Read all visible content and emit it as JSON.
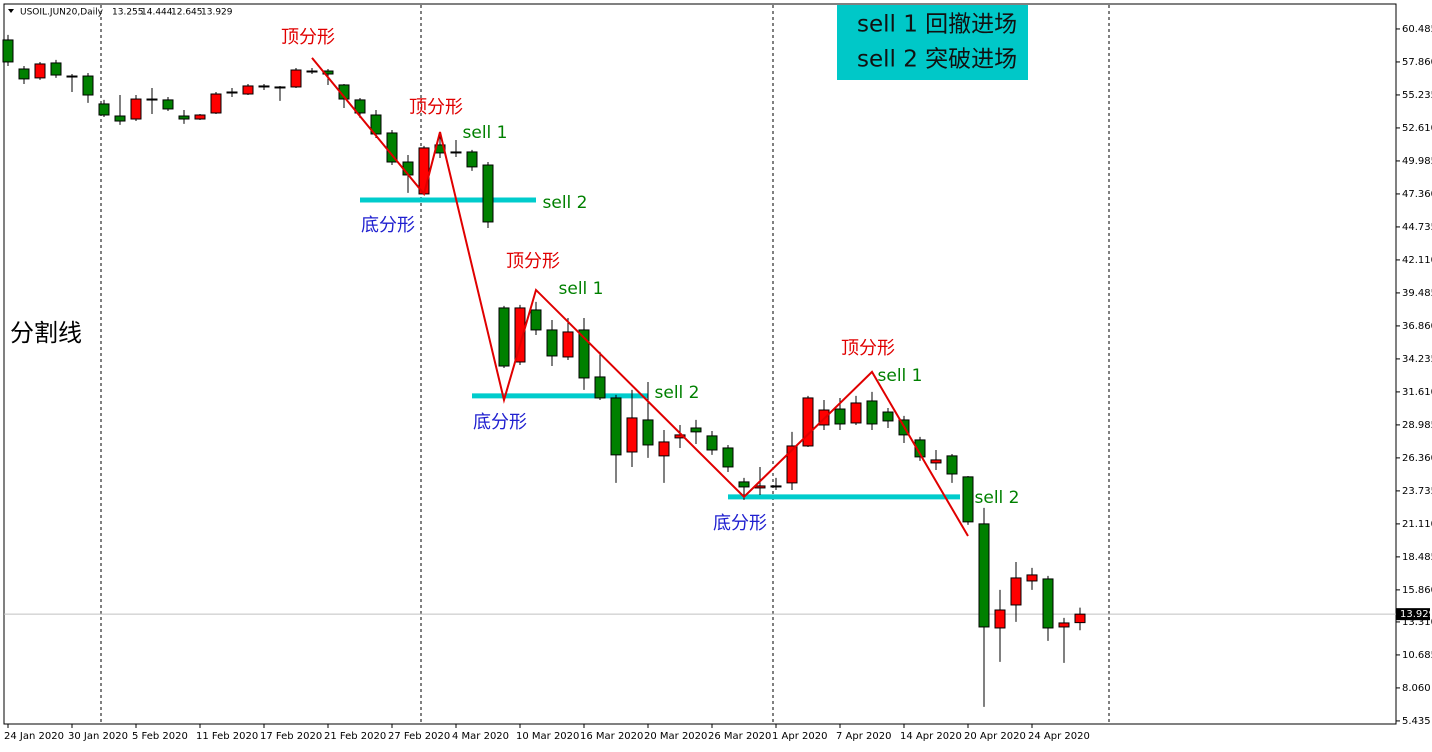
{
  "chart_data": {
    "type": "candlestick",
    "title": "USOIL.JUN20,Daily",
    "categories": [
      "24 Jan 2020",
      null,
      null,
      null,
      "30 Jan 2020",
      null,
      null,
      null,
      "5 Feb 2020",
      null,
      null,
      null,
      "11 Feb 2020",
      null,
      null,
      null,
      "17 Feb 2020",
      null,
      null,
      null,
      "21 Feb 2020",
      null,
      null,
      null,
      "27 Feb 2020",
      null,
      null,
      null,
      "4 Mar 2020",
      null,
      null,
      null,
      "10 Mar 2020",
      null,
      null,
      null,
      "16 Mar 2020",
      null,
      null,
      null,
      "20 Mar 2020",
      null,
      null,
      null,
      "26 Mar 2020",
      null,
      null,
      null,
      "1 Apr 2020",
      null,
      null,
      null,
      "7 Apr 2020",
      null,
      null,
      null,
      "14 Apr 2020",
      null,
      null,
      null,
      "20 Apr 2020",
      null,
      null,
      null,
      "24 Apr 2020",
      null,
      null,
      null
    ],
    "open": [
      59.61,
      57.3,
      56.59,
      57.78,
      56.74,
      56.74,
      54.52,
      53.56,
      53.32,
      54.91,
      54.84,
      53.56,
      53.32,
      53.8,
      55.47,
      55.31,
      55.95,
      55.87,
      55.87,
      57.14,
      57.14,
      56.03,
      54.84,
      53.64,
      52.21,
      49.9,
      47.36,
      51.26,
      50.7,
      50.7,
      49.66,
      38.29,
      33.99,
      38.13,
      36.54,
      34.39,
      36.54,
      32.8,
      31.13,
      26.83,
      29.38,
      26.52,
      27.95,
      28.74,
      28.11,
      27.15,
      24.45,
      23.97,
      24.13,
      24.37,
      27.31,
      28.98,
      30.25,
      29.14,
      30.89,
      30.01,
      29.38,
      27.79,
      25.96,
      26.52,
      24.85,
      21.11,
      12.83,
      14.66,
      16.57,
      16.73,
      12.91,
      13.255
    ],
    "high": [
      60.01,
      57.54,
      57.86,
      58.02,
      56.9,
      56.98,
      54.84,
      55.23,
      55.23,
      55.79,
      55.07,
      54.04,
      53.72,
      55.47,
      55.79,
      56.11,
      56.11,
      55.95,
      57.38,
      57.38,
      57.3,
      56.11,
      54.99,
      54.04,
      52.45,
      50.46,
      51.18,
      52.21,
      51.65,
      50.86,
      49.9,
      38.45,
      38.53,
      38.77,
      37.33,
      37.49,
      37.49,
      34.79,
      31.37,
      31.77,
      32.4,
      28.58,
      28.98,
      29.38,
      28.5,
      27.39,
      24.77,
      25.64,
      24.77,
      28.43,
      31.29,
      30.97,
      31.13,
      31.29,
      31.61,
      30.33,
      29.7,
      28.03,
      26.99,
      26.67,
      24.92,
      22.38,
      15.86,
      18.08,
      17.61,
      16.97,
      13.63,
      14.444
    ],
    "low": [
      57.54,
      56.11,
      56.43,
      56.59,
      55.47,
      54.6,
      53.48,
      52.85,
      53.16,
      53.72,
      53.96,
      52.93,
      53.24,
      53.72,
      55.07,
      55.23,
      55.63,
      54.76,
      55.79,
      56.9,
      56.03,
      54.2,
      53.4,
      51.81,
      49.66,
      47.44,
      47.28,
      50.22,
      50.3,
      49.19,
      44.65,
      33.51,
      33.75,
      36.14,
      33.67,
      34.15,
      31.77,
      30.97,
      24.37,
      25.64,
      26.36,
      24.37,
      27.15,
      27.47,
      26.6,
      25.24,
      23.02,
      23.41,
      23.81,
      23.81,
      27.23,
      28.58,
      28.58,
      28.98,
      28.58,
      28.74,
      27.55,
      26.12,
      25.4,
      24.37,
      21.03,
      6.55,
      10.13,
      13.31,
      15.86,
      11.8,
      10.05,
      12.645
    ],
    "close": [
      57.86,
      56.51,
      57.7,
      56.82,
      56.7,
      55.23,
      53.64,
      53.16,
      54.91,
      54.84,
      54.12,
      53.32,
      53.64,
      55.31,
      55.39,
      55.95,
      55.87,
      55.79,
      57.22,
      57.1,
      56.9,
      54.91,
      53.8,
      52.13,
      49.9,
      48.87,
      51.02,
      50.62,
      50.62,
      49.51,
      45.13,
      33.67,
      38.29,
      36.54,
      34.47,
      36.38,
      32.72,
      31.13,
      26.6,
      29.54,
      27.39,
      27.63,
      28.19,
      28.43,
      26.99,
      25.64,
      24.05,
      24.13,
      24.05,
      27.31,
      31.13,
      30.17,
      29.06,
      30.73,
      29.06,
      29.3,
      28.19,
      26.44,
      26.2,
      25.08,
      21.27,
      12.91,
      14.26,
      16.81,
      17.05,
      12.83,
      13.23,
      13.929
    ],
    "up_color": "#ff0000",
    "down_color": "#008000",
    "ylim": [
      5.19,
      62.47
    ],
    "yticks": [
      5.435,
      {
        "value": 8.06,
        "label": "8.060"
      },
      10.685,
      {
        "value": 13.31,
        "label": "13.310"
      },
      {
        "value": 15.86,
        "label": "15.860"
      },
      18.485,
      {
        "value": 21.11,
        "label": "21.110"
      },
      23.735,
      {
        "value": 26.36,
        "label": "26.360"
      },
      28.985,
      {
        "value": 31.61,
        "label": "31.610"
      },
      34.235,
      {
        "value": 36.86,
        "label": "36.860"
      },
      39.485,
      {
        "value": 42.11,
        "label": "42.110"
      },
      44.735,
      {
        "value": 47.36,
        "label": "47.360"
      },
      49.985,
      {
        "value": 52.61,
        "label": "52.610"
      },
      55.235,
      {
        "value": 57.86,
        "label": "57.860"
      },
      60.485
    ],
    "current_price": 13.929,
    "zigzag": {
      "color": "#e00000",
      "x": [
        19,
        26,
        27,
        31,
        33,
        46,
        54,
        60
      ],
      "values": [
        58.18,
        47.36,
        52.29,
        30.97,
        39.72,
        23.26,
        33.2,
        20.15
      ]
    },
    "levels": [
      {
        "color": "#00cccc",
        "x": [
          22,
          33
        ],
        "value": 46.88
      },
      {
        "color": "#00cccc",
        "x": [
          29,
          40
        ],
        "value": 31.29
      },
      {
        "color": "#00cccc",
        "x": [
          45,
          59.5
        ],
        "value": 23.26
      }
    ],
    "annotations": [
      {
        "text": "顶分形",
        "color": "#e00000"
      },
      {
        "text": "顶分形",
        "color": "#e00000"
      },
      {
        "text": "sell 1",
        "color": "#008000"
      },
      {
        "text": "sell 2",
        "color": "#008000"
      },
      {
        "text": "底分形",
        "color": "#2020d0"
      },
      {
        "text": "顶分形",
        "color": "#e00000"
      },
      {
        "text": "sell 1",
        "color": "#008000"
      },
      {
        "text": "底分形",
        "color": "#2020d0"
      },
      {
        "text": "sell 2",
        "color": "#008000"
      },
      {
        "text": "顶分形",
        "color": "#e00000"
      },
      {
        "text": "sell 1",
        "color": "#008000"
      },
      {
        "text": "底分形",
        "color": "#2020d0"
      },
      {
        "text": "sell 2",
        "color": "#008000"
      }
    ],
    "separator_label": "分割线",
    "legend": [
      "sell 1 回撤进场",
      "sell 2 突破进场"
    ]
  }
}
